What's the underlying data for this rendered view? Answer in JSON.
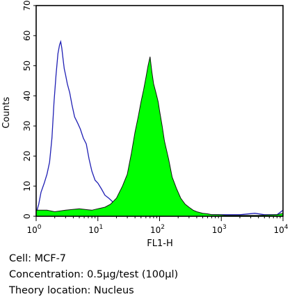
{
  "chart_data": {
    "type": "area",
    "xlabel": "FL1-H",
    "ylabel": "Counts",
    "xscale": "log",
    "xlim": [
      1,
      10000
    ],
    "ylim": [
      0,
      70
    ],
    "xticks": [
      {
        "value": 1,
        "base": "10",
        "exp": "0"
      },
      {
        "value": 10,
        "base": "10",
        "exp": "1"
      },
      {
        "value": 100,
        "base": "10",
        "exp": "2"
      },
      {
        "value": 1000,
        "base": "10",
        "exp": "3"
      },
      {
        "value": 10000,
        "base": "10",
        "exp": "4"
      }
    ],
    "yticks": [
      0,
      10,
      20,
      30,
      40,
      50,
      60,
      70
    ],
    "grid": false,
    "series": [
      {
        "style": "outline",
        "color": "#1f1fb4",
        "x": [
          1,
          1.1,
          1.2,
          1.35,
          1.5,
          1.65,
          1.8,
          1.95,
          2.1,
          2.25,
          2.4,
          2.5,
          2.6,
          2.7,
          2.85,
          3.0,
          3.2,
          3.5,
          3.8,
          4.2,
          4.7,
          5.2,
          5.8,
          6.5,
          7.2,
          8.0,
          9.0,
          10,
          11.5,
          13,
          15,
          17,
          19,
          22,
          26,
          32,
          45,
          70,
          110,
          200,
          400,
          800,
          2000,
          3500,
          5000,
          8000,
          10000
        ],
        "values": [
          1,
          4,
          8,
          11,
          14,
          18,
          26,
          38,
          47,
          54,
          57,
          58,
          56,
          53,
          49,
          47,
          44,
          41,
          37,
          33,
          31,
          29,
          26,
          24,
          19,
          15,
          12,
          11,
          9,
          7,
          6,
          5,
          3,
          2,
          1.5,
          1,
          1,
          0.5,
          0.5,
          0.5,
          0.5,
          0.5,
          0.5,
          1,
          0.5,
          0.5,
          2
        ]
      },
      {
        "style": "filled",
        "color": "#00ff00",
        "x": [
          1,
          1.5,
          2,
          3,
          5,
          8,
          10,
          13,
          16,
          20,
          25,
          30,
          35,
          40,
          45,
          50,
          55,
          60,
          65,
          70,
          75,
          80,
          85,
          90,
          95,
          100,
          110,
          120,
          140,
          160,
          190,
          220,
          260,
          300,
          350,
          400,
          500,
          600,
          700,
          900,
          1200,
          2000,
          4000,
          8000,
          10000
        ],
        "values": [
          2,
          2,
          1.5,
          2,
          2.5,
          2,
          2.5,
          3,
          4,
          6,
          10,
          14,
          21,
          28,
          33,
          38,
          42,
          46,
          50,
          53,
          48,
          44,
          42,
          40,
          38,
          35,
          30,
          25,
          19,
          13,
          9,
          6,
          4,
          3,
          2,
          1.5,
          1,
          0.8,
          0.5,
          0.5,
          0.3,
          0.3,
          0.3,
          0.5,
          1
        ]
      }
    ]
  },
  "caption": {
    "cell": "Cell: MCF-7",
    "concentration": "Concentration: 0.5µg/test (100µl)",
    "location": "Theory location: Nucleus"
  }
}
